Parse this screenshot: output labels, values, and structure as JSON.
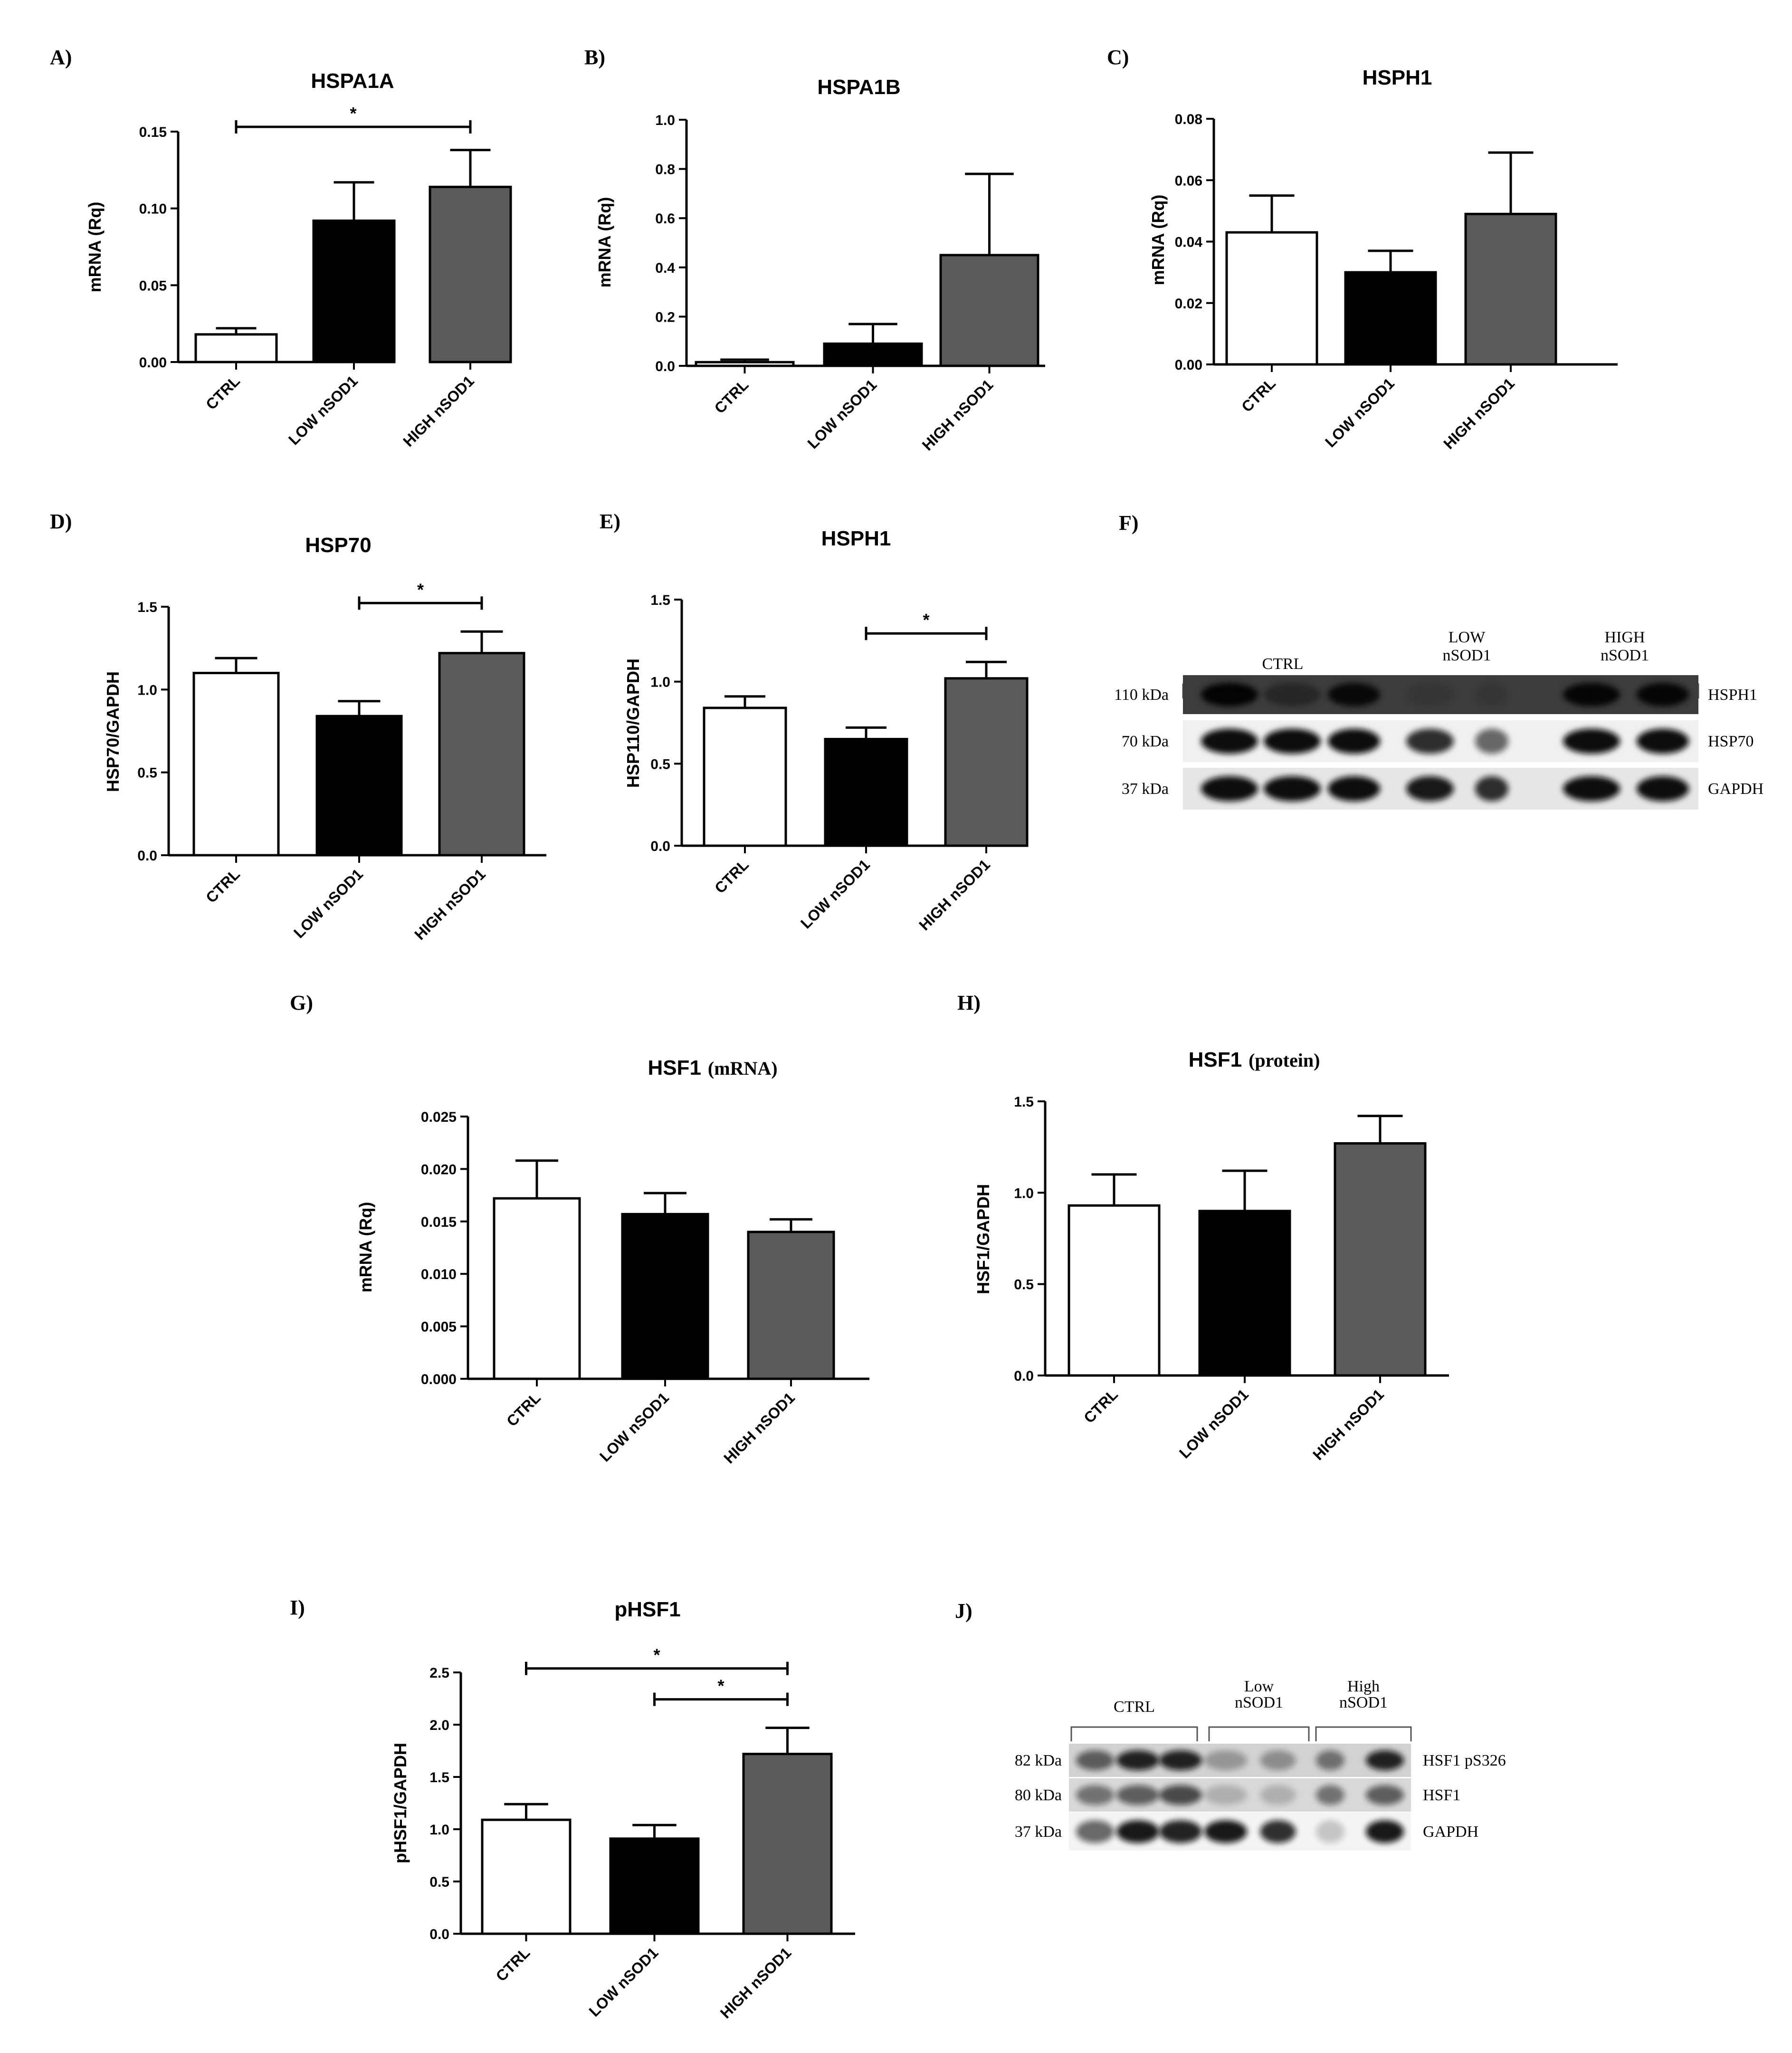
{
  "chart_data": [
    {
      "id": "A",
      "panel_label": "A)",
      "type": "bar",
      "title": "HSPA1A",
      "title_sub": "",
      "ylabel": "mRNA (Rq)",
      "categories": [
        "CTRL",
        "LOW nSOD1",
        "HIGH nSOD1"
      ],
      "values": [
        0.018,
        0.092,
        0.114
      ],
      "errors": [
        0.004,
        0.025,
        0.024
      ],
      "ylim": [
        0,
        0.15
      ],
      "yticks": [
        "0.00",
        "0.05",
        "0.10",
        "0.15"
      ],
      "significance": [
        {
          "from": 0,
          "to": 2,
          "label": "*"
        }
      ],
      "colors": [
        "#ffffff",
        "#000000",
        "#5a5a5a"
      ]
    },
    {
      "id": "B",
      "panel_label": "B)",
      "type": "bar",
      "title": "HSPA1B",
      "title_sub": "",
      "ylabel": "mRNA (Rq)",
      "categories": [
        "CTRL",
        "LOW nSOD1",
        "HIGH nSOD1"
      ],
      "values": [
        0.015,
        0.09,
        0.45
      ],
      "errors": [
        0.01,
        0.08,
        0.33
      ],
      "ylim": [
        0,
        1.0
      ],
      "yticks": [
        "0.0",
        "0.2",
        "0.4",
        "0.6",
        "0.8",
        "1.0"
      ],
      "significance": [],
      "colors": [
        "#ffffff",
        "#000000",
        "#5a5a5a"
      ]
    },
    {
      "id": "C",
      "panel_label": "C)",
      "type": "bar",
      "title": "HSPH1",
      "title_sub": "",
      "ylabel": "mRNA (Rq)",
      "categories": [
        "CTRL",
        "LOW nSOD1",
        "HIGH nSOD1"
      ],
      "values": [
        0.043,
        0.03,
        0.049
      ],
      "errors": [
        0.012,
        0.007,
        0.02
      ],
      "ylim": [
        0,
        0.08
      ],
      "yticks": [
        "0.00",
        "0.02",
        "0.04",
        "0.06",
        "0.08"
      ],
      "significance": [],
      "colors": [
        "#ffffff",
        "#000000",
        "#5a5a5a"
      ]
    },
    {
      "id": "D",
      "panel_label": "D)",
      "type": "bar",
      "title": "HSP70",
      "title_sub": "",
      "ylabel": "HSP70/GAPDH",
      "categories": [
        "CTRL",
        "LOW nSOD1",
        "HIGH nSOD1"
      ],
      "values": [
        1.1,
        0.84,
        1.22
      ],
      "errors": [
        0.09,
        0.09,
        0.13
      ],
      "ylim": [
        0,
        1.5
      ],
      "yticks": [
        "0.0",
        "0.5",
        "1.0",
        "1.5"
      ],
      "significance": [
        {
          "from": 1,
          "to": 2,
          "label": "*"
        }
      ],
      "colors": [
        "#ffffff",
        "#000000",
        "#5a5a5a"
      ]
    },
    {
      "id": "E",
      "panel_label": "E)",
      "type": "bar",
      "title": "HSPH1",
      "title_sub": "",
      "ylabel": "HSP110/GAPDH",
      "categories": [
        "CTRL",
        "LOW nSOD1",
        "HIGH nSOD1"
      ],
      "values": [
        0.84,
        0.65,
        1.02
      ],
      "errors": [
        0.07,
        0.07,
        0.1
      ],
      "ylim": [
        0,
        1.5
      ],
      "yticks": [
        "0.0",
        "0.5",
        "1.0",
        "1.5"
      ],
      "significance": [
        {
          "from": 1,
          "to": 2,
          "label": "*"
        }
      ],
      "colors": [
        "#ffffff",
        "#000000",
        "#5a5a5a"
      ]
    },
    {
      "id": "G",
      "panel_label": "G)",
      "type": "bar",
      "title": "HSF1",
      "title_sub": "(mRNA)",
      "ylabel": "mRNA (Rq)",
      "categories": [
        "CTRL",
        "LOW nSOD1",
        "HIGH nSOD1"
      ],
      "values": [
        0.0172,
        0.0157,
        0.014
      ],
      "errors": [
        0.0036,
        0.002,
        0.0012
      ],
      "ylim": [
        0,
        0.025
      ],
      "yticks": [
        "0.000",
        "0.005",
        "0.010",
        "0.015",
        "0.020",
        "0.025"
      ],
      "significance": [],
      "colors": [
        "#ffffff",
        "#000000",
        "#5a5a5a"
      ]
    },
    {
      "id": "H",
      "panel_label": "H)",
      "type": "bar",
      "title": "HSF1",
      "title_sub": "(protein)",
      "ylabel": "HSF1/GAPDH",
      "categories": [
        "CTRL",
        "LOW nSOD1",
        "HIGH nSOD1"
      ],
      "values": [
        0.93,
        0.9,
        1.27
      ],
      "errors": [
        0.17,
        0.22,
        0.15
      ],
      "ylim": [
        0,
        1.5
      ],
      "yticks": [
        "0.0",
        "0.5",
        "1.0",
        "1.5"
      ],
      "significance": [],
      "colors": [
        "#ffffff",
        "#000000",
        "#5a5a5a"
      ]
    },
    {
      "id": "I",
      "panel_label": "I)",
      "type": "bar",
      "title": "pHSF1",
      "title_sub": "",
      "ylabel": "pHSF1/GAPDH",
      "categories": [
        "CTRL",
        "LOW nSOD1",
        "HIGH nSOD1"
      ],
      "values": [
        1.09,
        0.91,
        1.72
      ],
      "errors": [
        0.15,
        0.13,
        0.25
      ],
      "ylim": [
        0,
        2.5
      ],
      "yticks": [
        "0.0",
        "0.5",
        "1.0",
        "1.5",
        "2.0",
        "2.5"
      ],
      "significance": [
        {
          "from": 0,
          "to": 2,
          "label": "*"
        },
        {
          "from": 1,
          "to": 2,
          "label": "*"
        }
      ],
      "colors": [
        "#ffffff",
        "#000000",
        "#5a5a5a"
      ]
    }
  ],
  "blots": [
    {
      "id": "F",
      "panel_label": "F)",
      "groups": [
        {
          "label": "CTRL",
          "lanes": 3
        },
        {
          "label": "LOW nSOD1",
          "lanes": 2
        },
        {
          "label": "HIGH nSOD1",
          "lanes": 2
        }
      ],
      "rows": [
        {
          "kda": "110 kDa",
          "protein": "HSPH1"
        },
        {
          "kda": "70 kDa",
          "protein": "HSP70"
        },
        {
          "kda": "37 kDa",
          "protein": "GAPDH"
        }
      ]
    },
    {
      "id": "J",
      "panel_label": "J)",
      "groups": [
        {
          "label": "CTRL",
          "lanes": 3
        },
        {
          "label": "Low nSOD1",
          "lanes": 2
        },
        {
          "label": "High nSOD1",
          "lanes": 2
        }
      ],
      "rows": [
        {
          "kda": "82 kDa",
          "protein": "HSF1 pS326"
        },
        {
          "kda": "80 kDa",
          "protein": "HSF1"
        },
        {
          "kda": "37 kDa",
          "protein": "GAPDH"
        }
      ]
    }
  ]
}
